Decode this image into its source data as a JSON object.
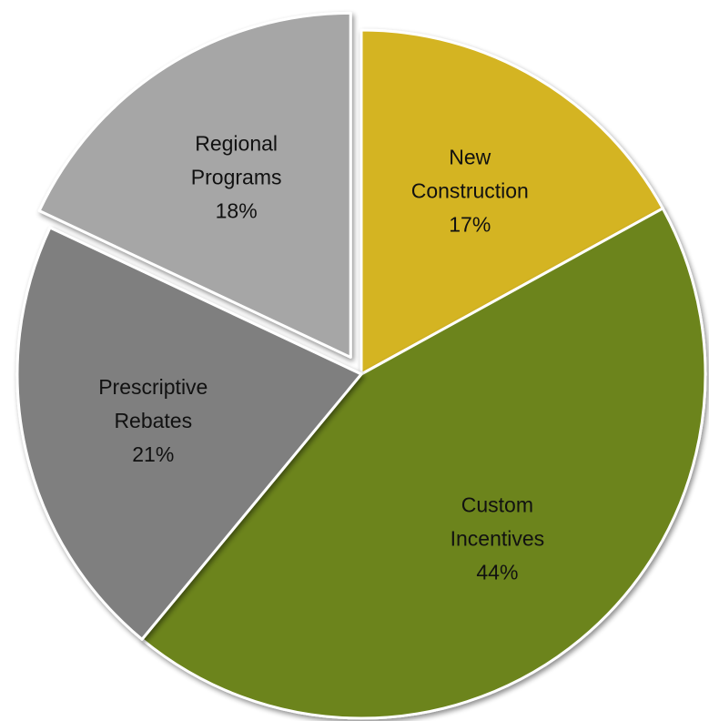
{
  "chart_data": {
    "type": "pie",
    "title": "",
    "slices": [
      {
        "label": "New Construction",
        "label_lines": [
          "New",
          "Construction"
        ],
        "value": 17,
        "percent_text": "17%",
        "color": "#D4B421",
        "exploded": false
      },
      {
        "label": "Custom Incentives",
        "label_lines": [
          "Custom",
          "Incentives"
        ],
        "value": 44,
        "percent_text": "44%",
        "color": "#6C841A",
        "exploded": false
      },
      {
        "label": "Prescriptive Rebates",
        "label_lines": [
          "Prescriptive",
          "Rebates"
        ],
        "value": 21,
        "percent_text": "21%",
        "color": "#7F7F7F",
        "exploded": false
      },
      {
        "label": "Regional Programs",
        "label_lines": [
          "Regional",
          "Programs"
        ],
        "value": 18,
        "percent_text": "18%",
        "color": "#A6A6A6",
        "exploded": true
      }
    ],
    "start_angle_deg": 0,
    "direction": "clockwise",
    "slice_border_color": "#FFFFFF",
    "legend": "none",
    "data_labels": "inside"
  }
}
